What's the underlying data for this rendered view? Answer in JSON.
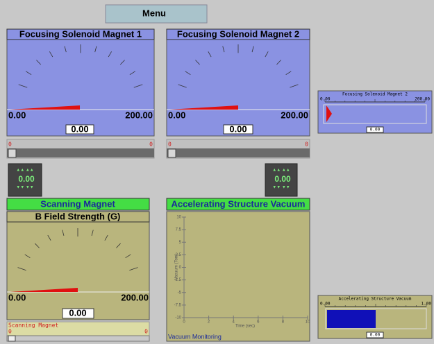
{
  "menu": {
    "label": "Menu"
  },
  "gauge1": {
    "title": "Focusing Solenoid Magnet 1",
    "min": "0.00",
    "max": "200.00",
    "value": "0.00",
    "slider_min": "0",
    "slider_max": "0"
  },
  "gauge2": {
    "title": "Focusing Solenoid Magnet 2",
    "min": "0.00",
    "max": "200.00",
    "value": "0.00",
    "slider_min": "0",
    "slider_max": "0"
  },
  "spinners": [
    "0.00",
    "0.00"
  ],
  "scanning": {
    "header": "Scanning Magnet",
    "title": "B Field Strength (G)",
    "min": "0.00",
    "max": "200.00",
    "value": "0.00",
    "slider_title": "Scanning Magnet",
    "slider_min": "0",
    "slider_max": "0"
  },
  "vacuum": {
    "header": "Accelerating Structure Vacuum",
    "y_label": "Vacuum (Torr)",
    "x_label": "Time (sec)",
    "caption": "Vacuum Monitoring",
    "y_ticks": [
      "10",
      "7.5",
      "5",
      "2.5",
      "0",
      "-2.5",
      "-5",
      "-7.5",
      "-10"
    ],
    "x_ticks": [
      "0",
      "2",
      "4",
      "6",
      "8",
      "10"
    ]
  },
  "mini1": {
    "title": "Focusing Solenoid Magnet 2",
    "min": "0.00",
    "max": "200.00",
    "value": "0.00"
  },
  "mini2": {
    "title": "Accelerating Structure Vacuum",
    "min": "0.00",
    "max": "1.00",
    "value": "0.00"
  }
}
